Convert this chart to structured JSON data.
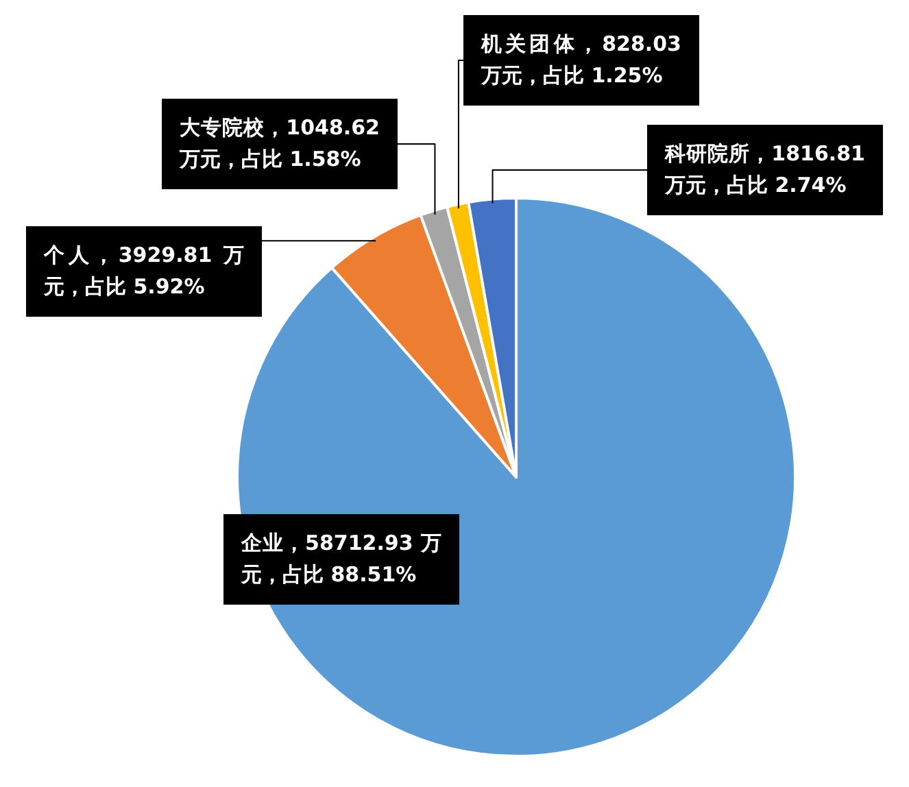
{
  "chart_data": {
    "type": "pie",
    "categories": [
      "企业，58712.93 万元，占比 88.51%",
      "个人，3929.81 万元，占比 5.92%",
      "大专院校，1048.62 万元，占比 1.58%",
      "机关团体，828.03 万元，占比 1.25%",
      "科研院所，1816.81 万元，占比 2.74%"
    ],
    "values": [
      58712.93,
      3929.81,
      1048.62,
      828.03,
      1816.81
    ],
    "colors": [
      "#5b9bd5",
      "#ed7d31",
      "#a5a5a5",
      "#ffc000",
      "#4472c4"
    ]
  }
}
